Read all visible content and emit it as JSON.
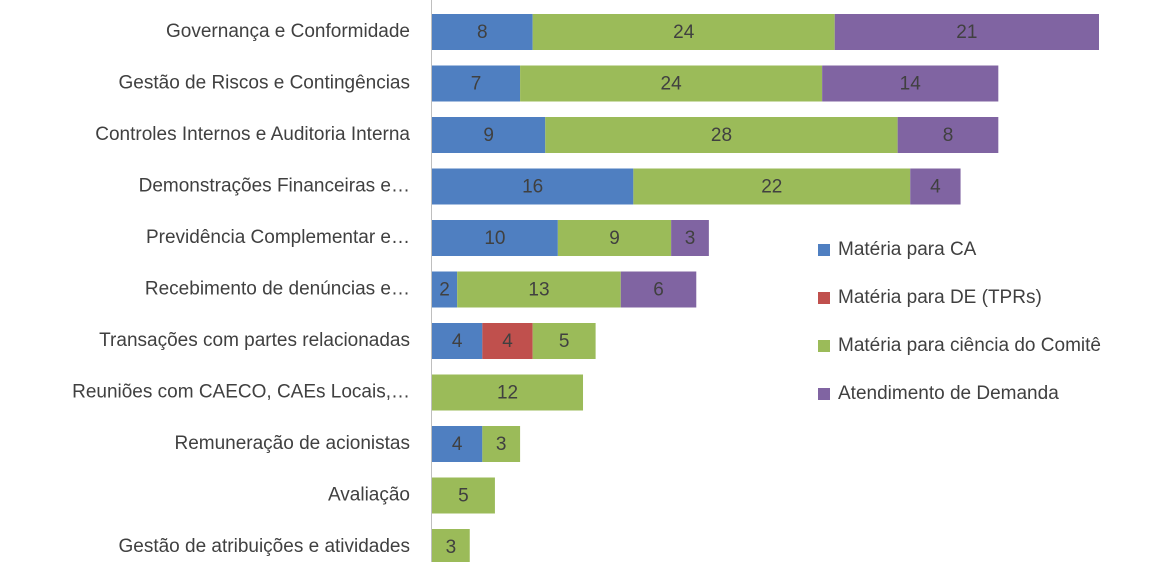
{
  "chart_data": {
    "type": "stacked-barh",
    "categories": [
      "Governança e Conformidade",
      "Gestão de Riscos e Contingências",
      "Controles Internos e Auditoria Interna",
      "Demonstrações Financeiras e…",
      "Previdência Complementar e…",
      "Recebimento de denúncias e…",
      "Transações com partes relacionadas",
      "Reuniões com CAECO, CAEs Locais,…",
      "Remuneração de acionistas",
      "Avaliação",
      "Gestão de atribuições e atividades"
    ],
    "series": [
      {
        "name": "Matéria para CA",
        "color": "#4f7fc1",
        "values": [
          8,
          7,
          9,
          16,
          10,
          2,
          4,
          null,
          4,
          null,
          null
        ]
      },
      {
        "name": "Matéria para DE (TPRs)",
        "color": "#c0504d",
        "values": [
          null,
          null,
          null,
          null,
          null,
          null,
          4,
          null,
          null,
          null,
          null
        ]
      },
      {
        "name": "Matéria para ciência do Comitê",
        "color": "#9bbb59",
        "values": [
          24,
          24,
          28,
          22,
          9,
          13,
          5,
          12,
          3,
          5,
          3
        ]
      },
      {
        "name": "Atendimento de Demanda",
        "color": "#8064a2",
        "values": [
          21,
          14,
          8,
          4,
          3,
          6,
          null,
          null,
          null,
          null,
          null
        ]
      }
    ]
  }
}
